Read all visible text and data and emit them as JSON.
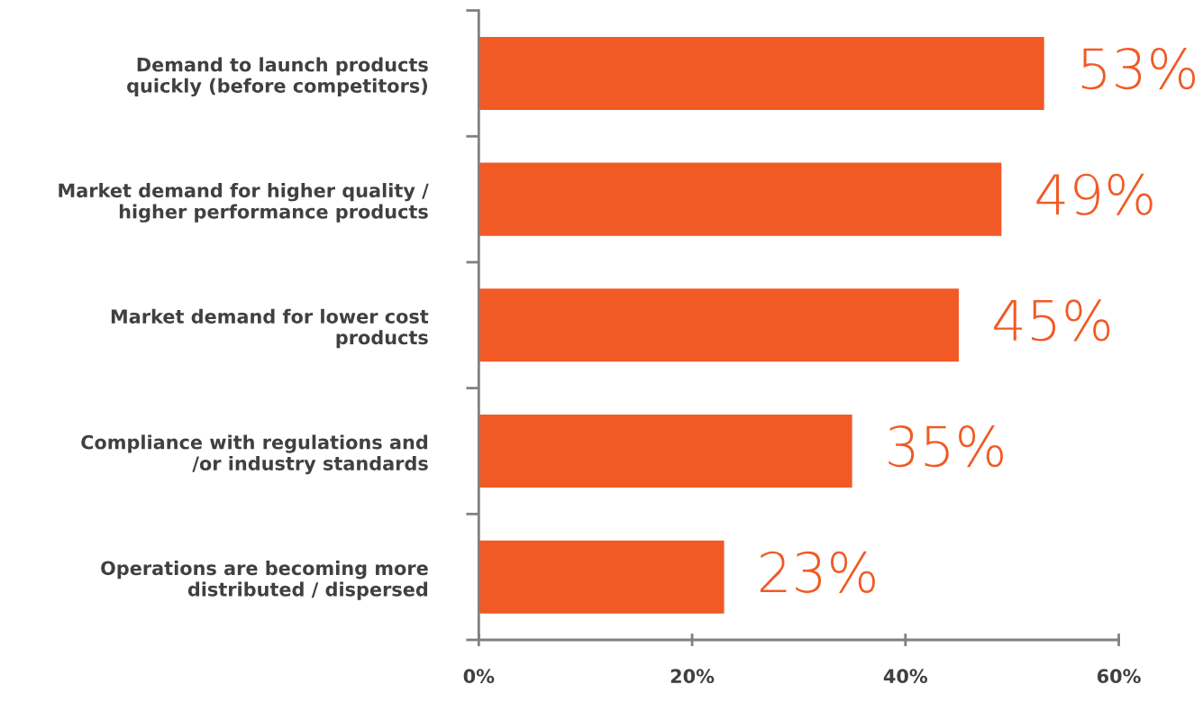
{
  "chart_data": {
    "type": "bar",
    "orientation": "horizontal",
    "categories": [
      "Demand to launch products\nquickly (before competitors)",
      "Market demand for higher quality /\nhigher performance products",
      "Market demand for lower cost\nproducts",
      "Compliance with regulations and\n/or industry standards",
      "Operations are becoming more\ndistributed / dispersed"
    ],
    "values": [
      53,
      49,
      45,
      35,
      23
    ],
    "value_labels": [
      "53%",
      "49%",
      "45%",
      "35%",
      "23%"
    ],
    "color": "#f15a24",
    "xlim": [
      0,
      60
    ],
    "xticks": [
      {
        "value": 0,
        "label": "0%"
      },
      {
        "value": 20,
        "label": "20%"
      },
      {
        "value": 40,
        "label": "40%"
      },
      {
        "value": 60,
        "label": "60%"
      }
    ],
    "grid": false
  }
}
